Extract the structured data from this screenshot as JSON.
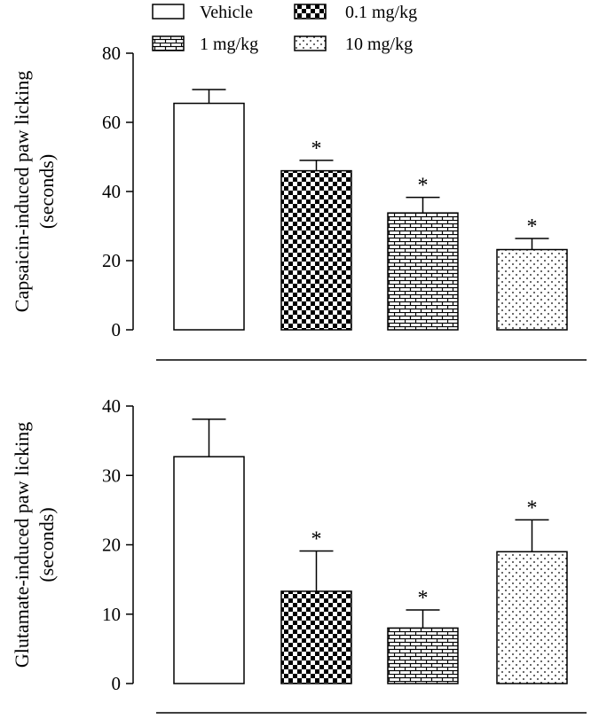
{
  "legend": {
    "placement": "top",
    "entries": [
      {
        "label": "Vehicle",
        "pattern": "white"
      },
      {
        "label": "0.1 mg/kg",
        "pattern": "checker"
      },
      {
        "label": "1 mg/kg",
        "pattern": "brick"
      },
      {
        "label": "10 mg/kg",
        "pattern": "dots"
      }
    ]
  },
  "chart_data": [
    {
      "type": "bar",
      "categories": [
        "Vehicle",
        "0.1 mg/kg",
        "1 mg/kg",
        "10 mg/kg"
      ],
      "values": [
        65.5,
        46,
        33.8,
        23.2
      ],
      "errors": [
        4,
        3,
        4.5,
        3.2
      ],
      "significant": [
        false,
        true,
        true,
        true
      ],
      "annotation": "*",
      "ylabel_lines": [
        "Capsaicin-induced paw licking",
        "(seconds)"
      ],
      "xlabel": "",
      "ylim": [
        0,
        80
      ],
      "yticks": [
        0,
        20,
        40,
        60,
        80
      ],
      "grid": false
    },
    {
      "type": "bar",
      "categories": [
        "Vehicle",
        "0.1 mg/kg",
        "1 mg/kg",
        "10 mg/kg"
      ],
      "values": [
        32.7,
        13.3,
        8,
        19
      ],
      "errors": [
        5.4,
        5.8,
        2.6,
        4.6
      ],
      "significant": [
        false,
        true,
        true,
        true
      ],
      "annotation": "*",
      "ylabel_lines": [
        "Glutamate-induced paw licking",
        "(seconds)"
      ],
      "xlabel": "",
      "ylim": [
        0,
        40
      ],
      "yticks": [
        0,
        10,
        20,
        30,
        40
      ],
      "grid": false
    }
  ]
}
